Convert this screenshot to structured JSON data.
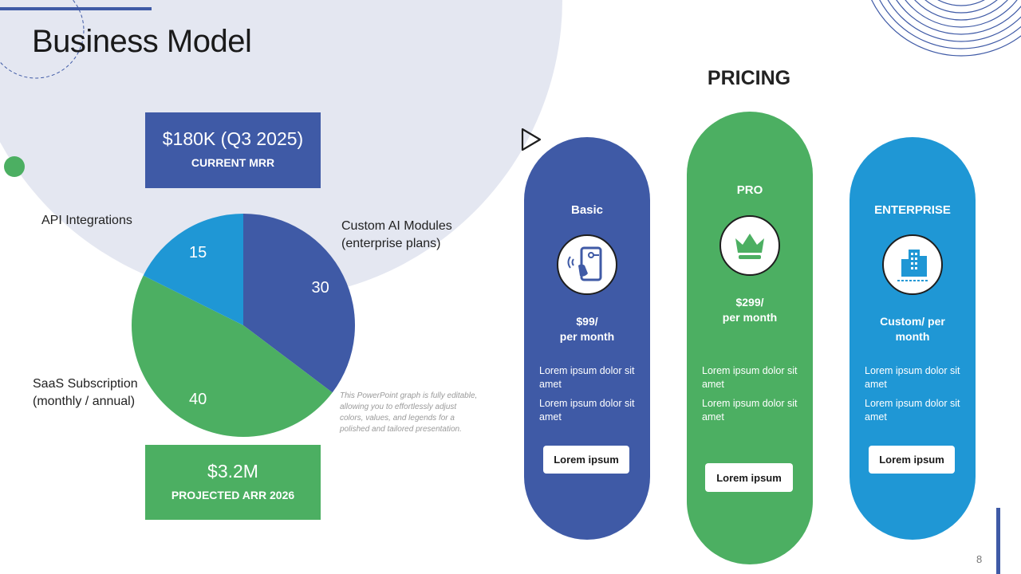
{
  "slide": {
    "title": "Business Model",
    "page_number": "8"
  },
  "colors": {
    "blue": "#3f5aa6",
    "green": "#4caf62",
    "light_blue": "#1f97d5",
    "bg_circle": "#e4e7f1"
  },
  "kpis": {
    "mrr": {
      "value": "$180K (Q3 2025)",
      "label": "CURRENT MRR"
    },
    "arr": {
      "value": "$3.2M",
      "label": "PROJECTED ARR 2026"
    }
  },
  "chart_data": {
    "type": "pie",
    "categories": [
      "Custom AI Modules (enterprise plans)",
      "SaaS Subscription (monthly / annual)",
      "API Integrations"
    ],
    "category_lines": [
      [
        "Custom AI Modules",
        "(enterprise plans)"
      ],
      [
        "SaaS Subscription",
        "(monthly / annual)"
      ],
      [
        "API Integrations"
      ]
    ],
    "values": [
      30,
      40,
      15
    ],
    "value_labels": [
      "30",
      "40",
      "15"
    ],
    "colors": [
      "#3f5aa6",
      "#4caf62",
      "#1f97d5"
    ]
  },
  "note": "This PowerPoint graph is fully editable, allowing you to effortlessly adjust colors, values, and legends for a polished and tailored presentation.",
  "pricing": {
    "title": "PRICING",
    "plans": [
      {
        "name": "Basic",
        "icon": "phone-card-icon",
        "price_line1": "$99/",
        "price_line2": "per month",
        "features": [
          "Lorem ipsum dolor sit amet",
          "Lorem ipsum dolor sit amet"
        ],
        "button": "Lorem ipsum"
      },
      {
        "name": "PRO",
        "icon": "crown-icon",
        "price_line1": "$299/",
        "price_line2": "per month",
        "features": [
          "Lorem ipsum dolor sit amet",
          "Lorem ipsum dolor sit amet"
        ],
        "button": "Lorem ipsum"
      },
      {
        "name": "ENTERPRISE",
        "icon": "buildings-icon",
        "price_line1": "Custom/ per",
        "price_line2": "month",
        "features": [
          "Lorem ipsum dolor sit amet",
          "Lorem ipsum dolor sit amet"
        ],
        "button": "Lorem ipsum"
      }
    ]
  }
}
